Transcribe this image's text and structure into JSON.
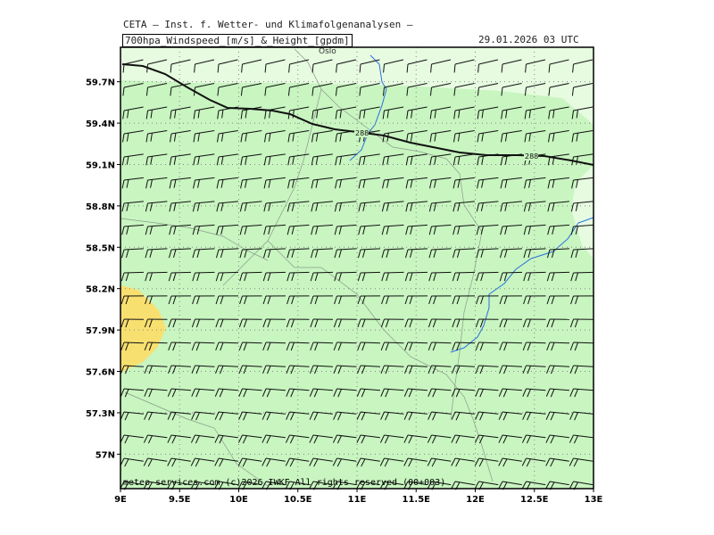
{
  "header": {
    "org_title": "CETA — Inst. f. Wetter- und Klimafolgenanalysen —",
    "field_title": "700hpa_Windspeed_[m/s]_&_Height_[gpdm]",
    "valid_time": "29.01.2026 03 UTC"
  },
  "map": {
    "lon_range": [
      9,
      13
    ],
    "lat_range": [
      56.75,
      59.95
    ],
    "lon_ticks": [
      "9E",
      "9.5E",
      "10E",
      "10.5E",
      "11E",
      "11.5E",
      "12E",
      "12.5E",
      "13E"
    ],
    "lat_ticks": [
      "57N",
      "57.3N",
      "57.6N",
      "57.9N",
      "58.2N",
      "58.5N",
      "58.8N",
      "59.1N",
      "59.4N",
      "59.7N"
    ],
    "grid": "dotted",
    "place_label": "Oslo",
    "contour_label": "288",
    "colors": {
      "shade_light": "#c8f5c0",
      "shade_pale": "#e6fbe0",
      "shade_yellow": "#f8e070",
      "river": "#2a6fe0",
      "coast": "#8a9a8a",
      "contour": "#111111"
    }
  },
  "footer": {
    "copyright": "meteo-services.com  (c)2026 IWKF  All rights reserved (00+003)"
  }
}
